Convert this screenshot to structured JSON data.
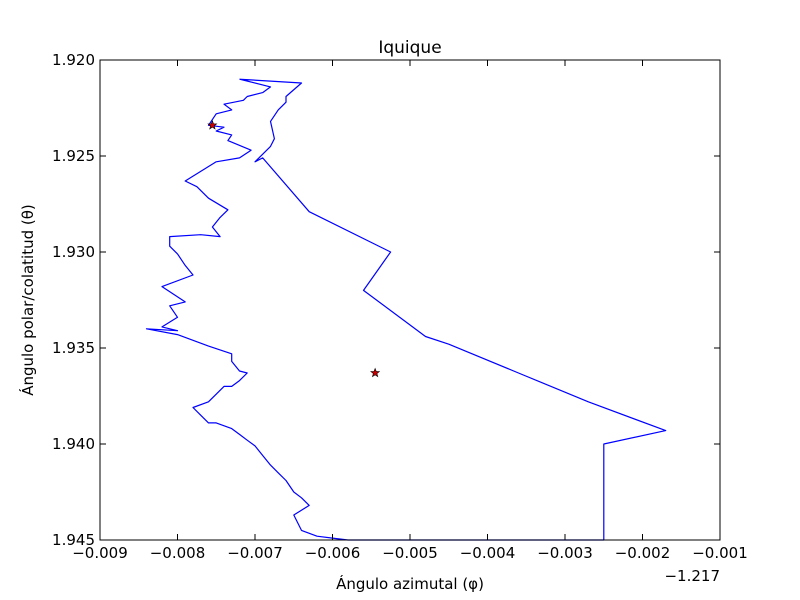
{
  "chart_data": {
    "type": "line",
    "title": "Iquique",
    "xlabel": "Ángulo azimutal (φ)",
    "ylabel": "Ángulo polar/colatitud (θ)",
    "x_offset_label": "−1.217",
    "x_offset": -1.217,
    "xlim": [
      -0.009,
      -0.001
    ],
    "ylim": [
      1.945,
      1.92
    ],
    "y_inverted": true,
    "grid": false,
    "x_ticks": [
      -0.009,
      -0.008,
      -0.007,
      -0.006,
      -0.005,
      -0.004,
      -0.003,
      -0.002,
      -0.001
    ],
    "x_tick_labels": [
      "−0.009",
      "−0.008",
      "−0.007",
      "−0.006",
      "−0.005",
      "−0.004",
      "−0.003",
      "−0.002",
      "−0.001"
    ],
    "y_ticks": [
      1.92,
      1.925,
      1.93,
      1.935,
      1.94,
      1.945
    ],
    "y_tick_labels": [
      "1.920",
      "1.925",
      "1.930",
      "1.935",
      "1.940",
      "1.945"
    ],
    "series": [
      {
        "name": "boundary",
        "color": "#0000ff",
        "x": [
          -0.0072,
          -0.0068,
          -0.0069,
          -0.0071,
          -0.00715,
          -0.0074,
          -0.0073,
          -0.0075,
          -0.0076,
          -0.0074,
          -0.0075,
          -0.0073,
          -0.00735,
          -0.00705,
          -0.0072,
          -0.0075,
          -0.0079,
          -0.00775,
          -0.0076,
          -0.00735,
          -0.00745,
          -0.00755,
          -0.00745,
          -0.0077,
          -0.0081,
          -0.0081,
          -0.008,
          -0.0079,
          -0.0078,
          -0.0082,
          -0.0079,
          -0.0081,
          -0.008,
          -0.0082,
          -0.008,
          -0.0084,
          -0.008,
          -0.0076,
          -0.0073,
          -0.0073,
          -0.0072,
          -0.0071,
          -0.0072,
          -0.0073,
          -0.0074,
          -0.0076,
          -0.0078,
          -0.0077,
          -0.0076,
          -0.0075,
          -0.0073,
          -0.0072,
          -0.0071,
          -0.007,
          -0.0069,
          -0.0068,
          -0.0067,
          -0.0066,
          -0.0065,
          -0.0064,
          -0.0063,
          -0.0065,
          -0.0064,
          -0.0062,
          -0.006,
          -0.0058,
          -0.0056,
          -0.0054,
          -0.0052,
          -0.005,
          -0.0046,
          -0.0042,
          -0.0038,
          -0.0034,
          -0.003,
          -0.0027,
          -0.0025,
          -0.0025,
          -0.0025,
          -0.0017,
          -0.0027,
          -0.0036,
          -0.0045,
          -0.0048,
          -0.0056,
          -0.00525,
          -0.0063,
          -0.0069,
          -0.007,
          -0.0068,
          -0.00675,
          -0.0068,
          -0.0067,
          -0.0066,
          -0.0066,
          -0.0064,
          -0.0072
        ],
        "y": [
          1.921,
          1.9214,
          1.9217,
          1.9219,
          1.9221,
          1.9223,
          1.9226,
          1.9228,
          1.9234,
          1.9235,
          1.9237,
          1.9239,
          1.9242,
          1.9247,
          1.9251,
          1.9253,
          1.9263,
          1.9266,
          1.9272,
          1.9278,
          1.9282,
          1.9287,
          1.9292,
          1.9291,
          1.9292,
          1.9297,
          1.9301,
          1.9307,
          1.9312,
          1.9318,
          1.9326,
          1.9328,
          1.9334,
          1.9339,
          1.9341,
          1.934,
          1.9343,
          1.9349,
          1.9353,
          1.9357,
          1.9362,
          1.9363,
          1.9367,
          1.937,
          1.937,
          1.9378,
          1.9381,
          1.9385,
          1.9389,
          1.9389,
          1.9392,
          1.9395,
          1.9398,
          1.9401,
          1.9406,
          1.9411,
          1.9415,
          1.9419,
          1.9425,
          1.9428,
          1.9432,
          1.9437,
          1.9445,
          1.9448,
          1.9449,
          1.945,
          1.945,
          1.945,
          1.945,
          1.945,
          1.945,
          1.945,
          1.945,
          1.945,
          1.945,
          1.945,
          1.945,
          1.943,
          1.94,
          1.9393,
          1.9378,
          1.9363,
          1.9348,
          1.9344,
          1.932,
          1.93,
          1.9279,
          1.9251,
          1.9253,
          1.9245,
          1.9241,
          1.9232,
          1.9226,
          1.9222,
          1.9219,
          1.9212,
          1.921
        ]
      }
    ],
    "markers": [
      {
        "name": "epicenter",
        "x": -0.00545,
        "y": 1.9363,
        "shape": "star",
        "color": "#cc0000"
      },
      {
        "name": "start-point",
        "x": -0.00755,
        "y": 1.9234,
        "shape": "star",
        "color": "#cc0000"
      }
    ]
  }
}
